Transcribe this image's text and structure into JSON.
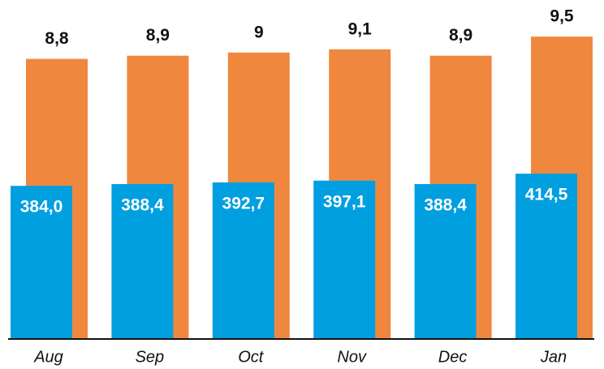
{
  "chart_data": {
    "type": "bar",
    "categories": [
      "Aug",
      "Sep",
      "Oct",
      "Nov",
      "Dec",
      "Jan"
    ],
    "ylim": [
      0,
      850
    ],
    "y2lim": [
      0,
      10.65
    ],
    "series": [
      {
        "name": null,
        "axis": "y2",
        "color": "#f0873f",
        "values": [
          8.8,
          8.9,
          9,
          9.1,
          8.9,
          9.5
        ],
        "value_labels": [
          "8,8",
          "8,9",
          "9",
          "9,1",
          "8,9",
          "9,5"
        ]
      },
      {
        "name": null,
        "color": "#009fe0",
        "values": [
          384.0,
          388.4,
          392.7,
          397.1,
          388.4,
          414.5
        ],
        "value_labels": [
          "384,0",
          "388,4",
          "392,7",
          "397,1",
          "388,4",
          "414,5"
        ]
      }
    ]
  }
}
